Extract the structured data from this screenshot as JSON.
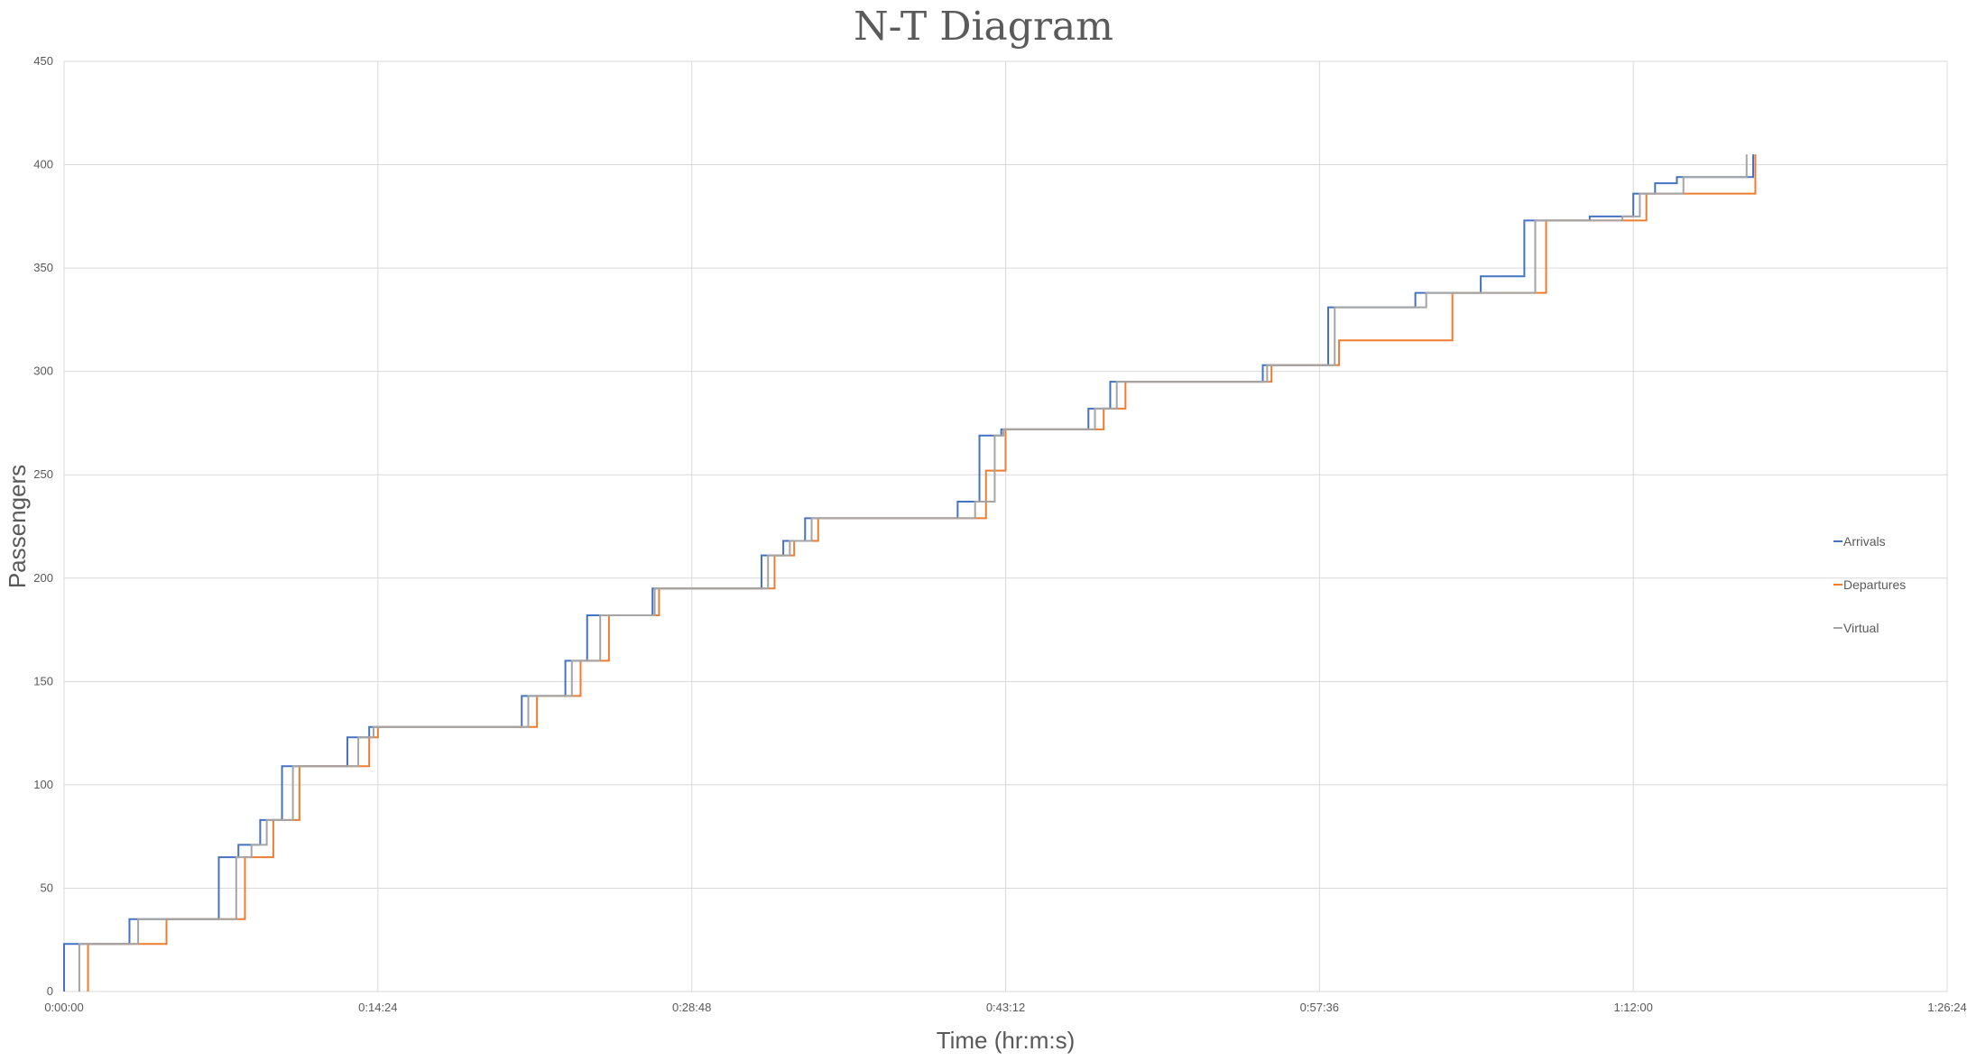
{
  "chart_data": {
    "type": "line",
    "title": "N-T Diagram",
    "xlabel": "Time (hr:m:s)",
    "ylabel": "Passengers",
    "xlim": [
      "0:00:00",
      "1:26:24"
    ],
    "xlim_minutes": [
      0,
      86.4
    ],
    "ylim": [
      0,
      450
    ],
    "x_ticks": [
      "0:00:00",
      "0:14:24",
      "0:28:48",
      "0:43:12",
      "0:57:36",
      "1:12:00",
      "1:26:24"
    ],
    "y_ticks": [
      0,
      50,
      100,
      150,
      200,
      250,
      300,
      350,
      400,
      450
    ],
    "grid": true,
    "legend_position": "right",
    "step": true,
    "series": [
      {
        "name": "Arrivals",
        "color": "#4472c4",
        "x": [
          0.0,
          3.0,
          7.1,
          8.0,
          9.0,
          10.0,
          13.0,
          14.0,
          21.0,
          23.0,
          24.0,
          27.0,
          32.0,
          33.0,
          34.0,
          41.0,
          42.0,
          43.0,
          47.0,
          48.0,
          55.0,
          58.0,
          62.0,
          65.0,
          67.0,
          70.0,
          72.0,
          73.0,
          74.0,
          77.5
        ],
        "y": [
          23,
          35,
          65,
          71,
          83,
          109,
          123,
          128,
          143,
          160,
          182,
          195,
          211,
          218,
          229,
          237,
          269,
          272,
          282,
          295,
          303,
          331,
          338,
          346,
          373,
          375,
          386,
          391,
          394,
          405
        ]
      },
      {
        "name": "Departures",
        "color": "#ed7d31",
        "x": [
          1.1,
          4.7,
          8.3,
          9.6,
          10.8,
          14.0,
          14.4,
          21.7,
          23.7,
          25.0,
          27.3,
          32.6,
          33.5,
          34.6,
          42.3,
          43.2,
          47.7,
          48.7,
          55.4,
          58.5,
          63.7,
          68.0,
          72.6,
          77.6
        ],
        "y": [
          23,
          35,
          65,
          83,
          109,
          123,
          128,
          143,
          160,
          182,
          195,
          211,
          218,
          229,
          252,
          272,
          282,
          295,
          303,
          315,
          338,
          373,
          386,
          405
        ]
      },
      {
        "name": "Virtual",
        "color": "#a5a5a5",
        "x": [
          0.7,
          3.4,
          7.9,
          8.6,
          9.3,
          10.5,
          13.5,
          14.2,
          21.3,
          23.3,
          24.6,
          27.1,
          32.3,
          33.3,
          34.3,
          41.8,
          42.7,
          43.1,
          47.3,
          48.3,
          55.2,
          58.3,
          62.5,
          67.5,
          71.5,
          72.3,
          74.3,
          77.2
        ],
        "y": [
          23,
          35,
          65,
          71,
          83,
          109,
          123,
          128,
          143,
          160,
          182,
          195,
          211,
          218,
          229,
          237,
          269,
          272,
          282,
          295,
          303,
          331,
          338,
          373,
          375,
          386,
          394,
          405
        ]
      }
    ]
  }
}
